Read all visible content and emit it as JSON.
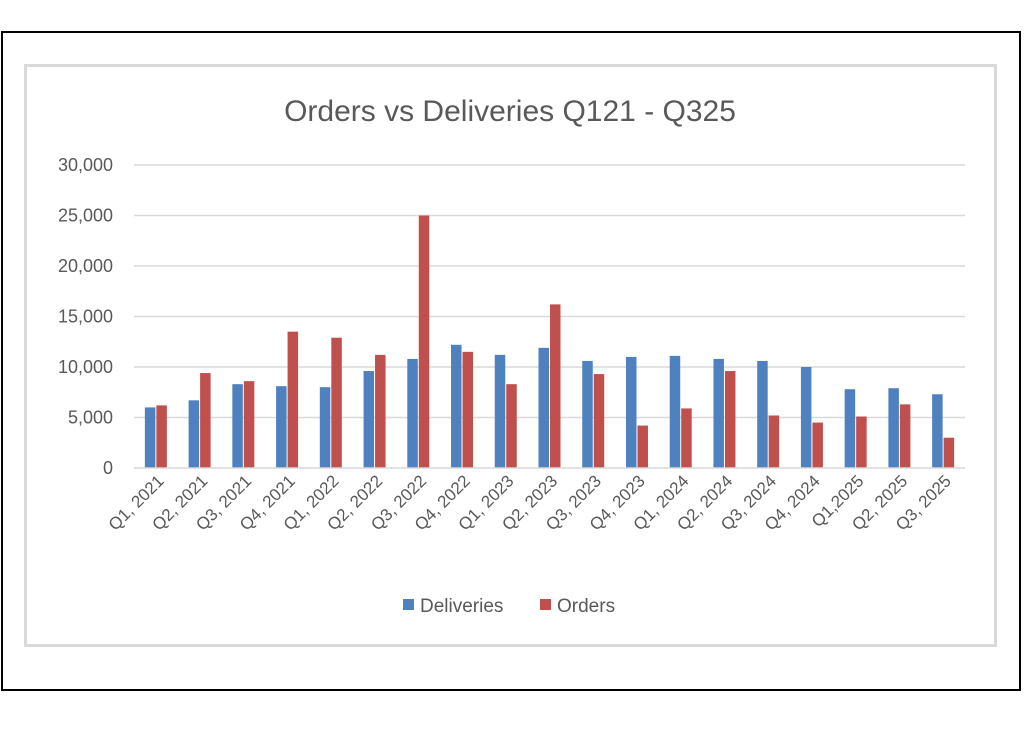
{
  "chart_data": {
    "type": "bar",
    "title": "Orders vs Deliveries Q121 - Q325",
    "xlabel": "",
    "ylabel": "",
    "ylim": [
      0,
      30000
    ],
    "yticks": [
      0,
      5000,
      10000,
      15000,
      20000,
      25000,
      30000
    ],
    "ytick_labels": [
      "0",
      "5,000",
      "10,000",
      "15,000",
      "20,000",
      "25,000",
      "30,000"
    ],
    "grid": true,
    "legend_position": "bottom",
    "categories": [
      "Q1, 2021",
      "Q2, 2021",
      "Q3, 2021",
      "Q4, 2021",
      "Q1, 2022",
      "Q2, 2022",
      "Q3, 2022",
      "Q4, 2022",
      "Q1, 2023",
      "Q2, 2023",
      "Q3, 2023",
      "Q4, 2023",
      "Q1, 2024",
      "Q2, 2024",
      "Q3, 2024",
      "Q4, 2024",
      "Q1,2025",
      "Q2, 2025",
      "Q3, 2025"
    ],
    "series": [
      {
        "name": "Deliveries",
        "color": "#4e81bd",
        "values": [
          6000,
          6700,
          8300,
          8100,
          8000,
          9600,
          10800,
          12200,
          11200,
          11900,
          10600,
          11000,
          11100,
          10800,
          10600,
          10000,
          7800,
          7900,
          7300
        ]
      },
      {
        "name": "Orders",
        "color": "#c0504d",
        "values": [
          6200,
          9400,
          8600,
          13500,
          12900,
          11200,
          25000,
          11500,
          8300,
          16200,
          9300,
          4200,
          5900,
          9600,
          5200,
          4500,
          5100,
          6300,
          3000
        ]
      }
    ]
  }
}
